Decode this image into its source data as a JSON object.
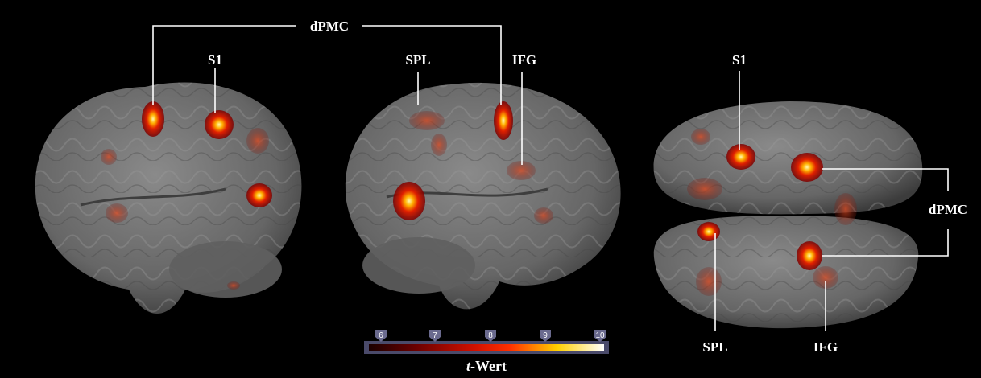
{
  "labels": {
    "dpmc_top": "dPMC",
    "s1_left": "S1",
    "spl_middle": "SPL",
    "ifg_middle": "IFG",
    "s1_right": "S1",
    "dpmc_right": "dPMC",
    "spl_right": "SPL",
    "ifg_right": "IFG"
  },
  "colorbar": {
    "ticks": [
      "6",
      "7",
      "8",
      "9",
      "10"
    ],
    "caption_italic": "t",
    "caption_rest": "-Wert",
    "colors": [
      "#1a0000",
      "#6a0000",
      "#d11000",
      "#ff3000",
      "#ffd000",
      "#ffffff"
    ]
  },
  "background": "#000000",
  "brain_color": "#6f6f6f"
}
